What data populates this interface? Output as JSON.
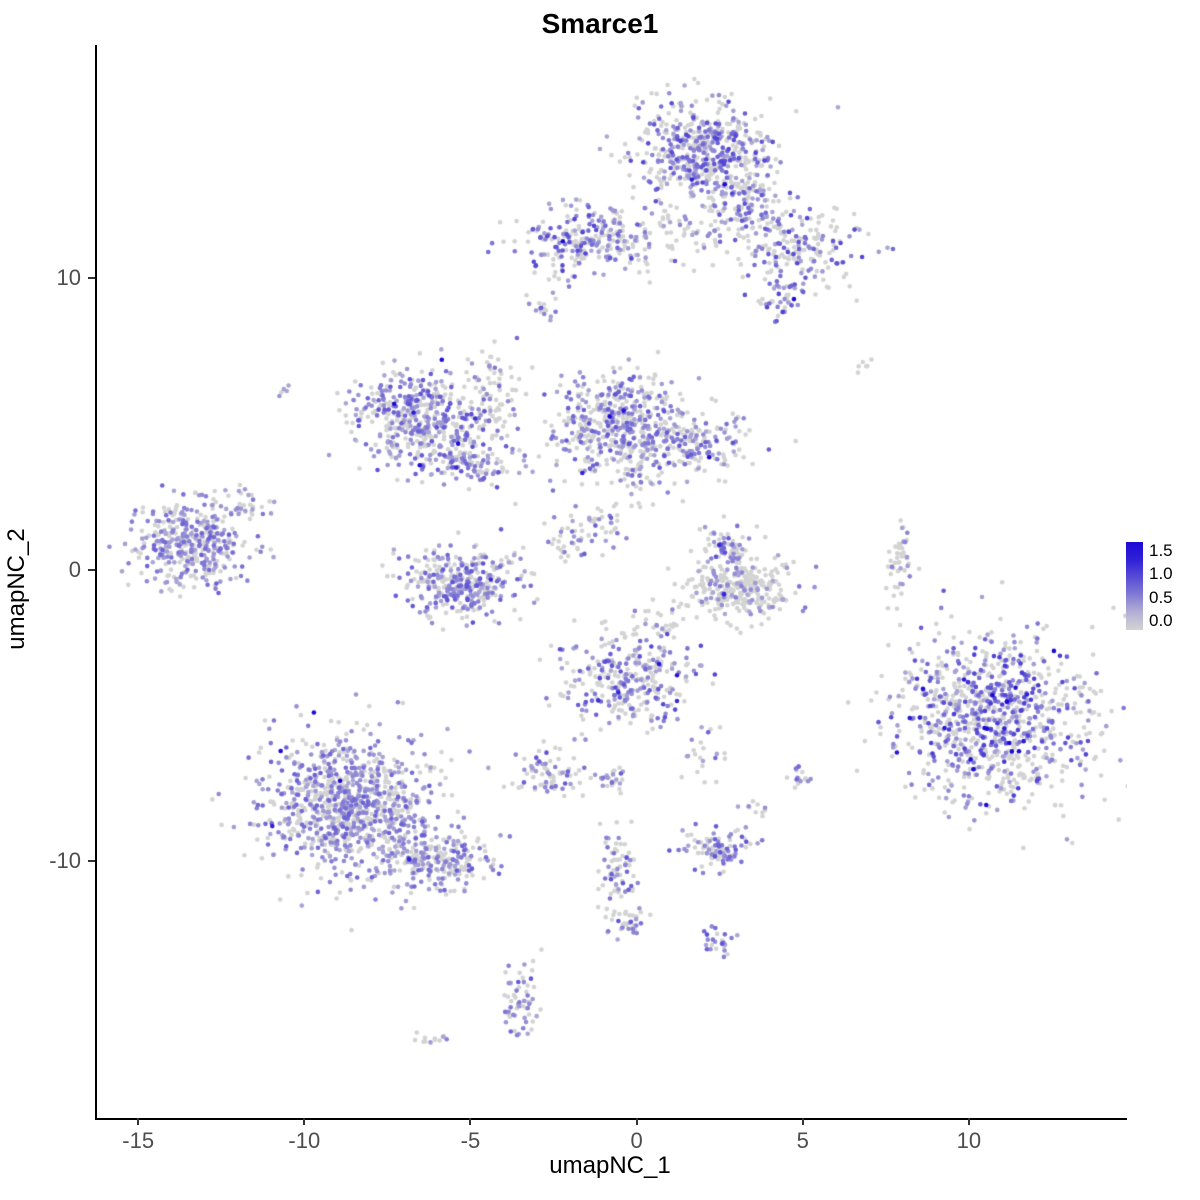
{
  "chart_data": {
    "type": "scatter",
    "title": "Smarce1",
    "xlabel": "umapNC_1",
    "ylabel": "umapNC_2",
    "grid": false,
    "legend_position": "right",
    "x_axis": {
      "tick_labels": [
        "-15",
        "-10",
        "-5",
        "0",
        "5",
        "10"
      ],
      "tick_values": [
        -15,
        -10,
        -5,
        0,
        5,
        10
      ],
      "domain": [
        -16.3,
        14.7
      ]
    },
    "y_axis": {
      "tick_labels": [
        "10",
        "0",
        "-10"
      ],
      "tick_values": [
        10,
        0,
        -10
      ],
      "domain": [
        -18.8,
        18.0
      ]
    },
    "color_scale": {
      "low_color": "#d3d3d3",
      "high_color": "#1c0ad6",
      "limits": [
        0,
        1.5
      ],
      "legend_tick_labels": [
        "1.5",
        "1.0",
        "0.5",
        "0.0"
      ],
      "legend_tick_values": [
        1.5,
        1.0,
        0.5,
        0.0
      ],
      "legend_value_span": [
        -0.18,
        1.68
      ]
    },
    "points_representation": "gaussian_clusters",
    "seed": 42,
    "point_radius": 2.3,
    "n_points_total": 6721,
    "clusters": [
      {
        "x": 1.9,
        "y": 14.4,
        "sx": 1.05,
        "sy": 0.8,
        "n": 520,
        "pos": 0.5,
        "lvl": 1.0,
        "hot": 0.02
      },
      {
        "x": 3.1,
        "y": 12.4,
        "sx": 0.8,
        "sy": 0.7,
        "n": 170,
        "pos": 0.4,
        "lvl": 0.9,
        "hot": 0.01
      },
      {
        "x": 5.0,
        "y": 10.9,
        "sx": 0.9,
        "sy": 0.7,
        "n": 170,
        "pos": 0.45,
        "lvl": 1.0,
        "hot": 0.02
      },
      {
        "x": 4.3,
        "y": 9.4,
        "sx": 0.4,
        "sy": 0.35,
        "n": 45,
        "pos": 0.6,
        "lvl": 1.1,
        "hot": 0.03
      },
      {
        "x": -1.7,
        "y": 11.4,
        "sx": 0.95,
        "sy": 0.55,
        "n": 210,
        "pos": 0.55,
        "lvl": 1.0,
        "hot": 0.03
      },
      {
        "x": 0.4,
        "y": 11.6,
        "sx": 1.1,
        "sy": 0.6,
        "n": 90,
        "pos": 0.25,
        "lvl": 0.6,
        "hot": 0
      },
      {
        "x": -2.85,
        "y": 8.8,
        "sx": 0.18,
        "sy": 0.22,
        "n": 14,
        "pos": 0.5,
        "lvl": 0.8,
        "hot": 0
      },
      {
        "x": -6.7,
        "y": 5.4,
        "sx": 1.0,
        "sy": 0.75,
        "n": 430,
        "pos": 0.55,
        "lvl": 0.9,
        "hot": 0.01
      },
      {
        "x": -5.2,
        "y": 3.8,
        "sx": 0.75,
        "sy": 0.5,
        "n": 140,
        "pos": 0.5,
        "lvl": 0.9,
        "hot": 0.01
      },
      {
        "x": -4.4,
        "y": 6.1,
        "sx": 0.5,
        "sy": 0.9,
        "n": 70,
        "pos": 0.3,
        "lvl": 0.7,
        "hot": 0
      },
      {
        "x": -0.7,
        "y": 5.0,
        "sx": 1.0,
        "sy": 0.85,
        "n": 470,
        "pos": 0.5,
        "lvl": 0.9,
        "hot": 0.015
      },
      {
        "x": 1.8,
        "y": 4.3,
        "sx": 0.85,
        "sy": 0.55,
        "n": 180,
        "pos": 0.45,
        "lvl": 0.9,
        "hot": 0.01
      },
      {
        "x": -13.4,
        "y": 0.9,
        "sx": 0.85,
        "sy": 0.75,
        "n": 400,
        "pos": 0.6,
        "lvl": 0.8,
        "hot": 0.005
      },
      {
        "x": -11.7,
        "y": 2.2,
        "sx": 0.4,
        "sy": 0.35,
        "n": 25,
        "pos": 0.4,
        "lvl": 0.6,
        "hot": 0
      },
      {
        "x": -5.3,
        "y": -0.4,
        "sx": 0.95,
        "sy": 0.6,
        "n": 340,
        "pos": 0.55,
        "lvl": 0.9,
        "hot": 0.01
      },
      {
        "x": -2.0,
        "y": 1.1,
        "sx": 0.45,
        "sy": 0.4,
        "n": 40,
        "pos": 0.5,
        "lvl": 0.8,
        "hot": 0.08
      },
      {
        "x": 3.0,
        "y": -0.6,
        "sx": 0.85,
        "sy": 0.55,
        "n": 320,
        "pos": 0.22,
        "lvl": 0.6,
        "hot": 0.005
      },
      {
        "x": 2.6,
        "y": 0.8,
        "sx": 0.45,
        "sy": 0.35,
        "n": 60,
        "pos": 0.6,
        "lvl": 0.9,
        "hot": 0.02
      },
      {
        "x": 7.9,
        "y": 0.2,
        "sx": 0.18,
        "sy": 0.65,
        "n": 45,
        "pos": 0.25,
        "lvl": 0.6,
        "hot": 0
      },
      {
        "x": 10.6,
        "y": -5.1,
        "sx": 1.5,
        "sy": 1.4,
        "n": 950,
        "pos": 0.5,
        "lvl": 1.1,
        "hot": 0.06
      },
      {
        "x": -0.3,
        "y": -3.8,
        "sx": 0.95,
        "sy": 0.85,
        "n": 310,
        "pos": 0.5,
        "lvl": 1.0,
        "hot": 0.04
      },
      {
        "x": -8.7,
        "y": -8.1,
        "sx": 1.25,
        "sy": 1.15,
        "n": 950,
        "pos": 0.55,
        "lvl": 0.8,
        "hot": 0.008
      },
      {
        "x": -6.1,
        "y": -9.9,
        "sx": 0.9,
        "sy": 0.55,
        "n": 240,
        "pos": 0.5,
        "lvl": 0.8,
        "hot": 0.005
      },
      {
        "x": -2.6,
        "y": -7.0,
        "sx": 0.5,
        "sy": 0.4,
        "n": 70,
        "pos": 0.5,
        "lvl": 0.9,
        "hot": 0.02
      },
      {
        "x": -0.8,
        "y": -7.3,
        "sx": 0.3,
        "sy": 0.3,
        "n": 28,
        "pos": 0.45,
        "lvl": 0.9,
        "hot": 0.02
      },
      {
        "x": 2.4,
        "y": -9.6,
        "sx": 0.55,
        "sy": 0.35,
        "n": 95,
        "pos": 0.6,
        "lvl": 0.9,
        "hot": 0.01
      },
      {
        "x": 2.4,
        "y": -12.9,
        "sx": 0.3,
        "sy": 0.25,
        "n": 24,
        "pos": 0.6,
        "lvl": 0.9,
        "hot": 0.02
      },
      {
        "x": -0.6,
        "y": -10.5,
        "sx": 0.3,
        "sy": 0.9,
        "n": 75,
        "pos": 0.45,
        "lvl": 0.9,
        "hot": 0.02
      },
      {
        "x": -0.35,
        "y": -12.1,
        "sx": 0.3,
        "sy": 0.3,
        "n": 30,
        "pos": 0.45,
        "lvl": 0.9,
        "hot": 0
      },
      {
        "x": -3.5,
        "y": -14.6,
        "sx": 0.3,
        "sy": 0.75,
        "n": 60,
        "pos": 0.5,
        "lvl": 0.9,
        "hot": 0.01
      },
      {
        "x": -6.2,
        "y": -16.1,
        "sx": 0.3,
        "sy": 0.15,
        "n": 12,
        "pos": 0.3,
        "lvl": 0.6,
        "hot": 0
      },
      {
        "x": 4.9,
        "y": -7.1,
        "sx": 0.25,
        "sy": 0.2,
        "n": 16,
        "pos": 0.5,
        "lvl": 0.8,
        "hot": 0
      },
      {
        "x": 3.6,
        "y": -8.2,
        "sx": 0.2,
        "sy": 0.15,
        "n": 10,
        "pos": 0.4,
        "lvl": 0.7,
        "hot": 0
      },
      {
        "x": 6.8,
        "y": 7.0,
        "sx": 0.15,
        "sy": 0.12,
        "n": 6,
        "pos": 0.15,
        "lvl": 0.4,
        "hot": 0
      },
      {
        "x": -10.6,
        "y": 6.2,
        "sx": 0.15,
        "sy": 0.12,
        "n": 5,
        "pos": 0.6,
        "lvl": 0.8,
        "hot": 0
      },
      {
        "x": -2.2,
        "y": 9.9,
        "sx": 0.2,
        "sy": 0.3,
        "n": 8,
        "pos": 0.4,
        "lvl": 0.6,
        "hot": 0
      },
      {
        "x": 0.0,
        "y": 2.9,
        "sx": 0.35,
        "sy": 0.45,
        "n": 30,
        "pos": 0.4,
        "lvl": 0.8,
        "hot": 0
      },
      {
        "x": -0.9,
        "y": 1.5,
        "sx": 0.3,
        "sy": 0.4,
        "n": 25,
        "pos": 0.4,
        "lvl": 0.8,
        "hot": 0
      },
      {
        "x": 2.0,
        "y": -6.4,
        "sx": 0.3,
        "sy": 0.4,
        "n": 18,
        "pos": 0.4,
        "lvl": 0.7,
        "hot": 0
      },
      {
        "x": 0.9,
        "y": -1.9,
        "sx": 0.4,
        "sy": 0.3,
        "n": 20,
        "pos": 0.3,
        "lvl": 0.6,
        "hot": 0
      }
    ]
  }
}
